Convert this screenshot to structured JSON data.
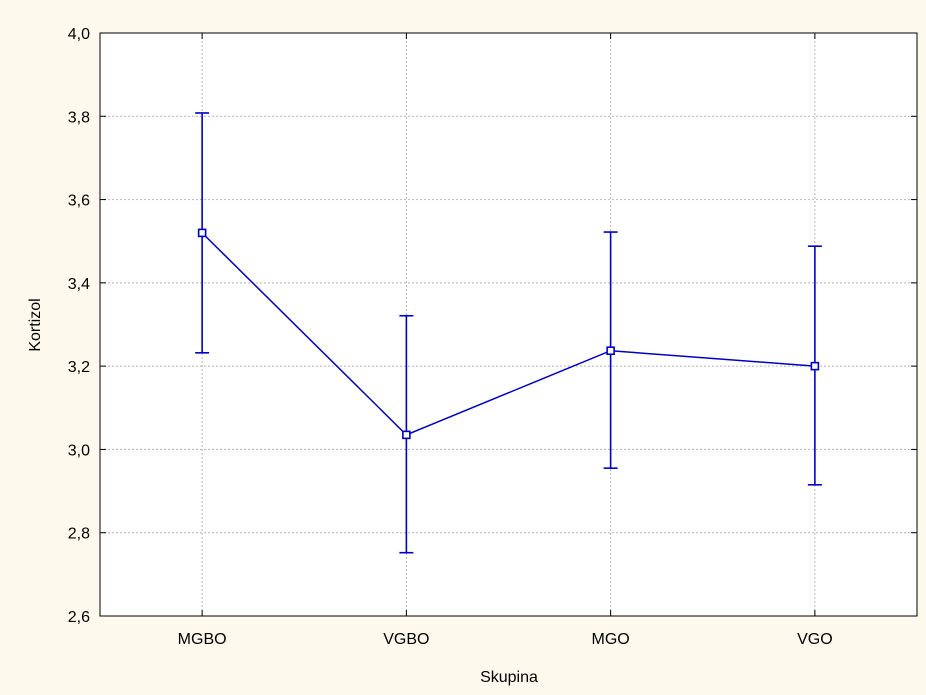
{
  "chart_data": {
    "type": "line",
    "title": "",
    "xlabel": "Skupina",
    "ylabel": "Kortizol",
    "categories": [
      "MGBO",
      "VGBO",
      "MGO",
      "VGO"
    ],
    "series": [
      {
        "values": [
          3.52,
          3.035,
          3.237,
          3.2
        ],
        "err_low": [
          3.232,
          2.752,
          2.955,
          2.915
        ],
        "err_high": [
          3.808,
          3.321,
          3.522,
          3.488
        ],
        "color": "#0000cc"
      }
    ],
    "ylim": [
      2.6,
      4.0
    ],
    "y_ticks": [
      "2,6",
      "2,8",
      "3,0",
      "3,2",
      "3,4",
      "3,6",
      "3,8",
      "4,0"
    ],
    "y_tick_values": [
      2.6,
      2.8,
      3.0,
      3.2,
      3.4,
      3.6,
      3.8,
      4.0
    ],
    "grid": true,
    "legend": "none"
  }
}
